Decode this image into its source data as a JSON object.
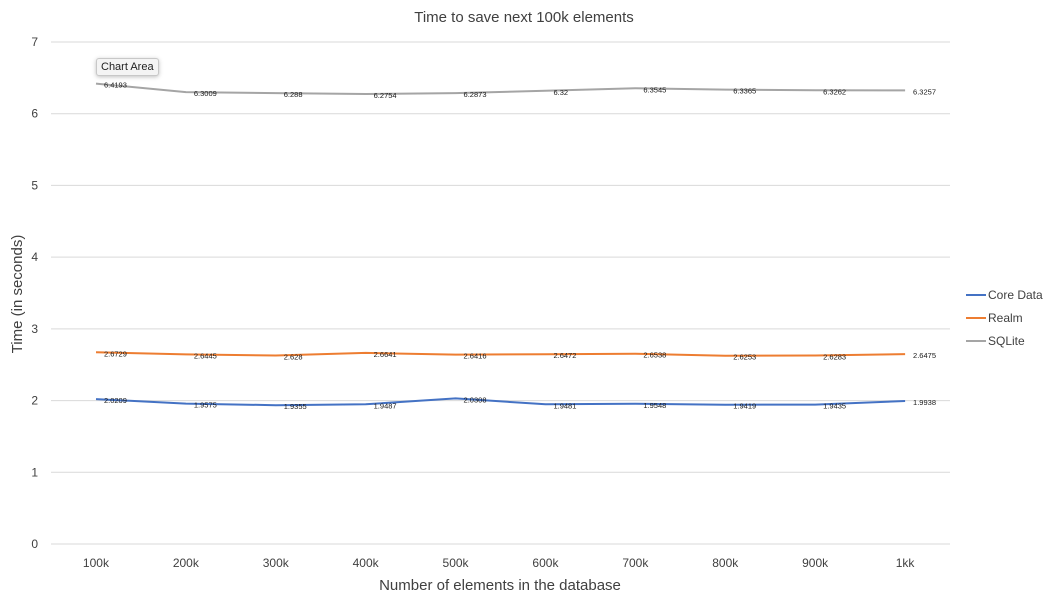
{
  "chart_data": {
    "type": "line",
    "title": "Time to save next 100k elements",
    "xlabel": "Number of elements in the database",
    "ylabel": "Time (in seconds)",
    "ylim": [
      0,
      7
    ],
    "yticks": [
      0,
      1,
      2,
      3,
      4,
      5,
      6,
      7
    ],
    "grid": true,
    "legend_position": "right",
    "categories": [
      "100k",
      "200k",
      "300k",
      "400k",
      "500k",
      "600k",
      "700k",
      "800k",
      "900k",
      "1kk"
    ],
    "series": [
      {
        "name": "Core Data",
        "color": "#4472c4",
        "values": [
          2.0209,
          1.9575,
          1.9355,
          1.9487,
          2.0308,
          1.9481,
          1.9548,
          1.9419,
          1.9435,
          1.9938
        ],
        "labels": [
          "2.0209",
          "1.9575",
          "1.9355",
          "1.9487",
          "2.0308",
          "1.9481",
          "1.9548",
          "1.9419",
          "1.9435",
          "1.9938"
        ]
      },
      {
        "name": "Realm",
        "color": "#ed7d31",
        "values": [
          2.6729,
          2.6445,
          2.628,
          2.6641,
          2.6416,
          2.6472,
          2.6538,
          2.6253,
          2.6283,
          2.6475
        ],
        "labels": [
          "2.6729",
          "2.6445",
          "2.628",
          "2.6641",
          "2.6416",
          "2.6472",
          "2.6538",
          "2.6253",
          "2.6283",
          "2.6475"
        ]
      },
      {
        "name": "SQLite",
        "color": "#a5a5a5",
        "values": [
          6.4193,
          6.3009,
          6.288,
          6.2754,
          6.2873,
          6.32,
          6.3545,
          6.3365,
          6.3262,
          6.3257
        ],
        "labels": [
          "6.4193",
          "6.3009",
          "6.288",
          "6.2754",
          "6.2873",
          "6.32",
          "6.3545",
          "6.3365",
          "6.3262",
          "6.3257"
        ]
      }
    ]
  },
  "tooltip": {
    "text": "Chart Area"
  }
}
